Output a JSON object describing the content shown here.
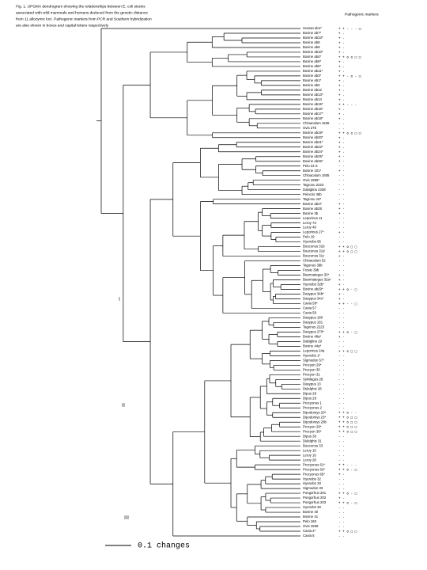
{
  "caption": [
    "Fig. 1. UPGMA dendrogram showing the relationships between E. coli strains",
    "associated with wild mammals and humans deduced from the genetic distance",
    "from 11 allozymic loci. Pathogenic markers from PCR and Southern hybridization",
    "are also shown in boxes and capital letters respectively"
  ],
  "markers_header": "Pathogenic markers",
  "clusters": [
    "I",
    "II",
    "III"
  ],
  "scale_label": "0.1 changes",
  "leaves": {
    "labels": [
      "Human ab1*",
      "Bovine ab7*",
      "Bovine ab23*",
      "Bovine ab8",
      "Bovine ab9",
      "Bovine ab10*",
      "Bovine ab4*",
      "Bovine ab6*",
      "Bovine ab5*",
      "Bovine ab11*",
      "Bovine ab3*",
      "Bovine ab1*",
      "Bovine ab2",
      "Bovine ab12",
      "Bovine ab13*",
      "Bovine ab14",
      "Bovine ab15*",
      "Bovine ab16*",
      "Bovine ab17*",
      "Bovine ab18*",
      "Chloacalum 1536",
      "Ovis 27b",
      "Bovine ab19*",
      "Bovine ab20*",
      "Bovine ab21*",
      "Bovine ab22*",
      "Bovine ab24*",
      "Bovine ab25*",
      "Bovine ab26*",
      "Pelo 23 S",
      "Bovine 101*",
      "Chloacalum 1935",
      "Ovis 1955*",
      "Tagronu 2223",
      "Dabiglina 2338",
      "Pelocris 36b",
      "Tagronu 15*",
      "Bovine ab27",
      "Bovine ab28",
      "Bovine 3b",
      "Leporinus 11",
      "Leroy 73",
      "Leroy 49",
      "Leporinus 27*",
      "Pelo 19",
      "Hyenobs 95",
      "Bouconus 31b",
      "Bouconus 31d",
      "Bouconus 31c",
      "Chloacalum 52",
      "Tagonus 39b",
      "Frosie 39b",
      "Bearmategus 32*",
      "Bearmategus 32a*",
      "Hyenobs 32b*",
      "Bovine ab29*",
      "Dasypus 34b*",
      "Dasypus 34c*",
      "Cavia 58*",
      "Cavia 57",
      "Cavia 59",
      "Dasypus 180",
      "Dasypus 181",
      "Tagonus 2223",
      "Dasypus 270*",
      "Bovine 48a*",
      "Dabiglina 19",
      "Bovine 44a*",
      "Leporinus 24a",
      "Hyenobs 1*",
      "Sigmodon 57*",
      "Procyon 29*",
      "Procyon 30",
      "Procyon 31",
      "Sylvilagus 28",
      "Dasypus 13",
      "Didelphis 28",
      "Dipus 28",
      "Dipus 29",
      "Procyonus 1",
      "Procyonus 2",
      "Dipodomys 20*",
      "Dipodomys 23*",
      "Dipodomys 28b",
      "Procyon 29*",
      "Procyon 30*",
      "Dipus 30",
      "Didelphis 31",
      "Bouconus 33",
      "Leroy 15",
      "Leroy 16",
      "Leroy 28",
      "Procyonus 61*",
      "Procyonus 63*",
      "Procyonus 65*",
      "Hyenobs 32",
      "Hyenobs 33",
      "Sigmodon 33",
      "Pongorhus 201",
      "Pongorhus 202",
      "Pongorhus 203",
      "Hyenobs 30",
      "Bovine 40",
      "Bovine 41",
      "Pelo 160",
      "Ovis 1569",
      "Cavia 2*",
      "Cavia 5"
    ],
    "markers": [
      "+  +  -  -  -  □",
      "+  -",
      "+  -",
      "+  -",
      "+  -",
      "+  -",
      "+  +  o  o  □  □",
      "+  -",
      "+  -",
      "+  -",
      "+  +  -  o  -  □",
      "+  -",
      "+  -",
      "+  -",
      "+  -",
      "+  -",
      "+  +  -  -  -",
      "+  -",
      "+  -",
      "+  -",
      "-  -",
      "-  -",
      "+  +  o  o  □  □",
      "+  -",
      "+  -",
      "+  -",
      "+  -",
      "+  -",
      "+  -",
      "-  -",
      "+  -",
      "-  -",
      "-  -",
      "-  -",
      "-  -",
      "-  -",
      "-  -",
      "+  -",
      "+  -",
      "+  -",
      "-  -",
      "-  -",
      "-  -",
      "+  -",
      "-  -",
      "-  -",
      "+  +  o  □  □",
      "+  +  o  □  □",
      "+  -",
      "-  -",
      "-  -",
      "-  -",
      "+  -",
      "+  -",
      "+  -",
      "+  +  o  -  □",
      "+  -",
      "+  -",
      "+  +  -  -  □",
      "-  -",
      "-  -",
      "-  -",
      "-  -",
      "-  -",
      "+  +  o  -  □",
      "+  -",
      "-  -",
      "-  -",
      "+  +  o  □  □",
      "-  -",
      "-  -",
      "-  -",
      "-  -",
      "-  -",
      "-  -",
      "-  -",
      "-  -",
      "-  -",
      "-  -",
      "-  -",
      "-  -",
      "+  +  o  -  -",
      "+  +  o  □  □",
      "+  +  o  □  □",
      "+  +  o  □  □",
      "+  +  o  □  □",
      "-  -",
      "-  -",
      "-  -",
      "-  -",
      "-  -",
      "-  -",
      "+  +  -  -  -",
      "+  +  o  -  □",
      "+  -",
      "-  -",
      "-  -",
      "-  -",
      "+  +  o  -  □",
      "+  -",
      "+  +  o  -  □",
      "-  -",
      "-  -",
      "-  -",
      "-  -",
      "-  -",
      "+  +  o  □  □",
      "-  -"
    ]
  }
}
